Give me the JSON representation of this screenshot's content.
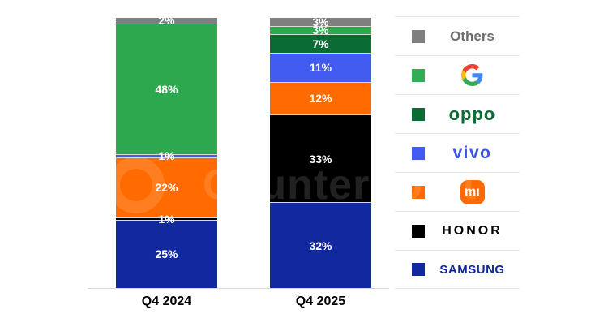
{
  "chart_data": {
    "type": "bar",
    "stacked": true,
    "orientation": "vertical",
    "title": "",
    "xlabel": "",
    "ylabel": "",
    "grid": false,
    "legend_position": "right",
    "categories": [
      "Q4 2024",
      "Q4 2025"
    ],
    "series": [
      {
        "name": "Others",
        "color": "#7F7F7F",
        "values": [
          2,
          3
        ]
      },
      {
        "name": "Google",
        "color": "#2EA84F",
        "values": [
          48,
          3
        ]
      },
      {
        "name": "OPPO",
        "color": "#0A6B35",
        "values": [
          0,
          7
        ]
      },
      {
        "name": "vivo",
        "color": "#415BF0",
        "values": [
          1,
          11
        ]
      },
      {
        "name": "Mi",
        "color": "#FF6B00",
        "values": [
          22,
          12
        ]
      },
      {
        "name": "HONOR",
        "color": "#000000",
        "values": [
          1,
          33
        ]
      },
      {
        "name": "SAMSUNG",
        "color": "#12289E",
        "values": [
          25,
          32
        ]
      }
    ],
    "value_labels_suffix": "%",
    "value_label_color": "#FFFFFF"
  },
  "legend": {
    "items": [
      {
        "label": "Others",
        "style": "others",
        "logo": "text",
        "swatch": "#7F7F7F",
        "text_color": "#6E6E6E"
      },
      {
        "label": "Google",
        "style": "google",
        "logo": "google-g",
        "swatch": "#33AC55"
      },
      {
        "label": "oppo",
        "style": "oppo",
        "logo": "text",
        "swatch": "#0A6B35",
        "text_color": "#0A6B35"
      },
      {
        "label": "vivo",
        "style": "vivo",
        "logo": "text",
        "swatch": "#415BF0",
        "text_color": "#3D56F0"
      },
      {
        "label": "mi",
        "style": "mi",
        "logo": "mi-badge",
        "swatch": "#FF6B00",
        "badge_color": "#FF6900",
        "badge_text": "mı"
      },
      {
        "label": "HONOR",
        "style": "honor",
        "logo": "text",
        "swatch": "#000000",
        "text_color": "#000000"
      },
      {
        "label": "SAMSUNG",
        "style": "samsung",
        "logo": "text",
        "swatch": "#12289E",
        "text_color": "#12289E"
      }
    ]
  },
  "watermark": {
    "text": "Counterpoint"
  }
}
